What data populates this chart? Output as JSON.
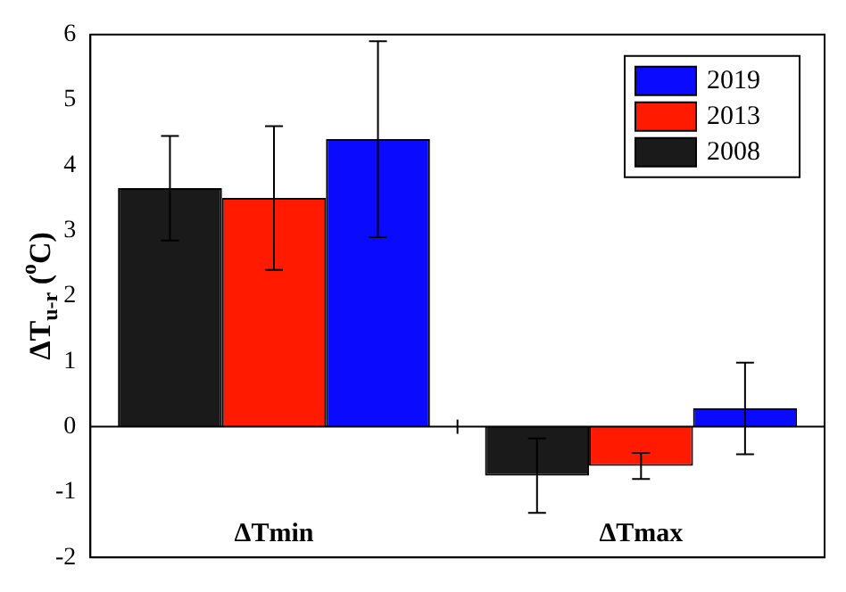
{
  "chart_data": {
    "type": "bar",
    "ylabel": "ΔT$_{u-r}$ ($^{o}$C)",
    "categories": [
      "ΔTmin",
      "ΔTmax"
    ],
    "series": [
      {
        "name": "2008",
        "color": "#1a1a1a",
        "values": [
          3.65,
          -0.75
        ],
        "errors": [
          0.8,
          0.57
        ]
      },
      {
        "name": "2013",
        "color": "#ff1a00",
        "values": [
          3.5,
          -0.6
        ],
        "errors": [
          1.1,
          0.2
        ]
      },
      {
        "name": "2019",
        "color": "#0a0aff",
        "values": [
          4.4,
          0.28
        ],
        "errors": [
          1.5,
          0.7
        ]
      }
    ],
    "ylim": [
      -2,
      6
    ],
    "yticks": [
      -2,
      -1,
      0,
      1,
      2,
      3,
      4,
      5,
      6
    ],
    "ref_lines": [
      {
        "axis": "y",
        "value": 0,
        "color": "#000000"
      }
    ],
    "legend": "top right"
  }
}
